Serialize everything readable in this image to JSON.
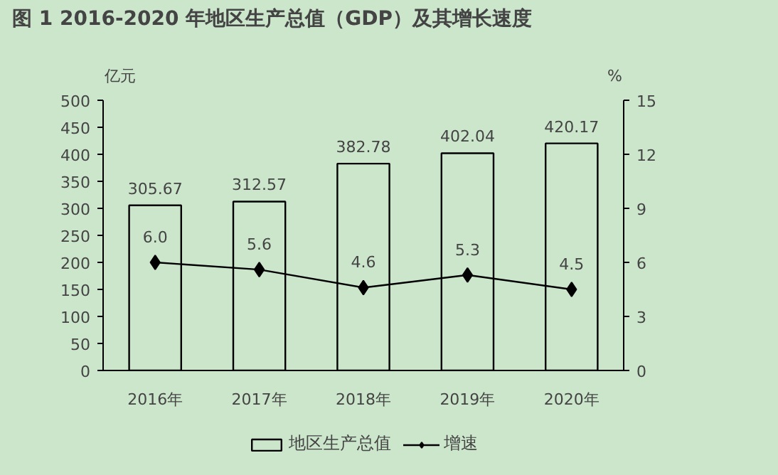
{
  "chart_data": {
    "type": "bar",
    "title": "图 1 2016-2020 年地区生产总值（GDP）及其增长速度",
    "ylabel": "亿元",
    "y2label": "%",
    "categories": [
      "2016年",
      "2017年",
      "2018年",
      "2019年",
      "2020年"
    ],
    "series": [
      {
        "name": "地区生产总值",
        "color": "#000000",
        "values": [
          305.67,
          312.57,
          382.78,
          402.04,
          420.17
        ],
        "value_labels": [
          "305.67",
          "312.57",
          "382.78",
          "402.04",
          "420.17"
        ]
      },
      {
        "name": "增速",
        "type": "line",
        "axis": "y2",
        "color": "#000000",
        "marker": "diamond",
        "values": [
          6.0,
          5.6,
          4.6,
          5.3,
          4.5
        ],
        "value_labels": [
          "6.0",
          "5.6",
          "4.6",
          "5.3",
          "4.5"
        ]
      }
    ],
    "ylim": [
      0,
      500
    ],
    "yticks": [
      0,
      50,
      100,
      150,
      200,
      250,
      300,
      350,
      400,
      450,
      500
    ],
    "y2lim": [
      0,
      15
    ],
    "y2ticks": [
      0,
      3,
      6,
      9,
      12,
      15
    ],
    "grid": false,
    "legend": "bottom"
  }
}
